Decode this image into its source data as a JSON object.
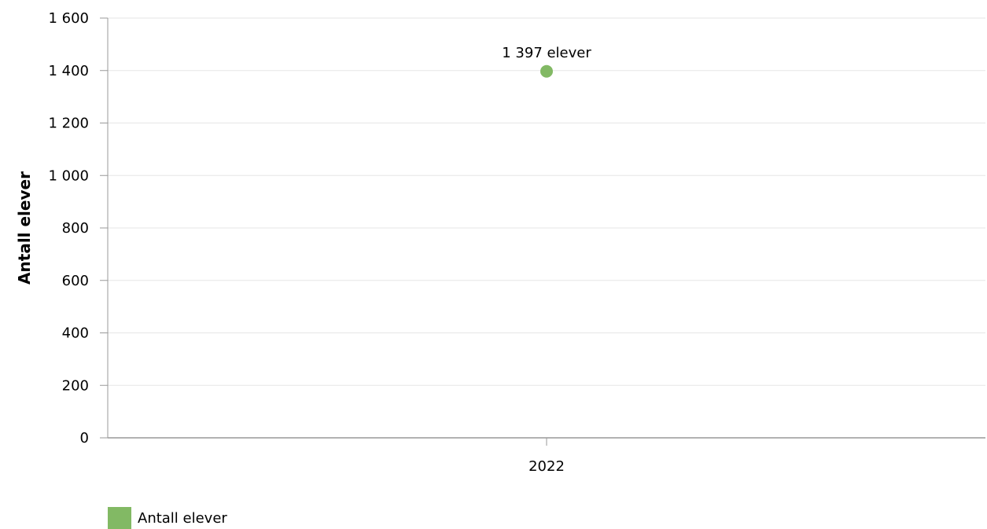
{
  "chart_data": {
    "type": "scatter",
    "ylabel": "Antall elever",
    "xlabel": "",
    "categories": [
      "2022"
    ],
    "ylim": [
      0,
      1600
    ],
    "yticks": [
      0,
      200,
      400,
      600,
      800,
      1000,
      1200,
      1400,
      1600
    ],
    "ytick_labels": [
      "0",
      "200",
      "400",
      "600",
      "800",
      "1 000",
      "1 200",
      "1 400",
      "1 600"
    ],
    "grid": true,
    "legend_position": "bottom-left",
    "series": [
      {
        "name": "Antall elever",
        "color": "#82b964",
        "values": [
          1397
        ],
        "data_labels": [
          "1 397 elever"
        ]
      }
    ]
  }
}
